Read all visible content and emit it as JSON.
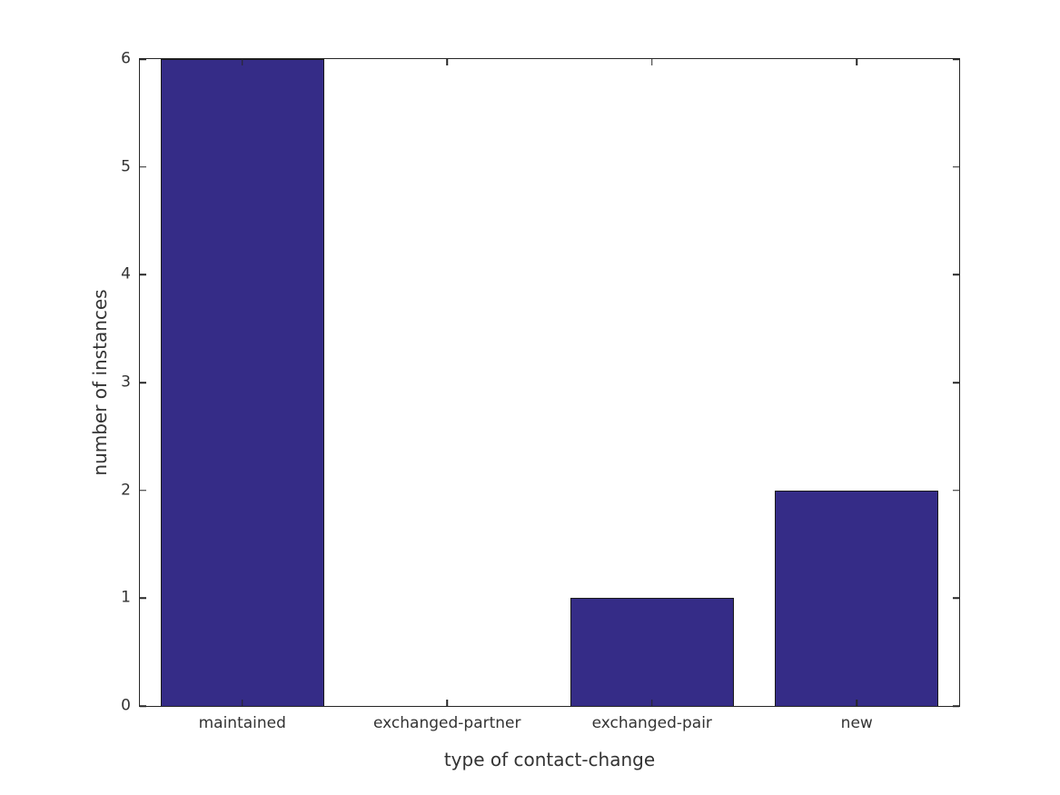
{
  "figure": {
    "background": "#ffffff",
    "axis_color": "#262626",
    "text_color": "#333333"
  },
  "chart_data": {
    "type": "bar",
    "title": "",
    "categories": [
      "maintained",
      "exchanged-partner",
      "exchanged-pair",
      "new"
    ],
    "values": [
      6,
      0,
      1,
      2
    ],
    "xlabel": "type of contact-change",
    "ylabel": "number of instances",
    "ylim": [
      0,
      6
    ],
    "yticks": [
      0,
      1,
      2,
      3,
      4,
      5,
      6
    ],
    "bar_color": "#352c87",
    "bar_edge_color": "#1a1a1a",
    "bar_width_fraction": 0.8,
    "grid": false,
    "legend": null,
    "tick_direction": "in",
    "box": true
  }
}
